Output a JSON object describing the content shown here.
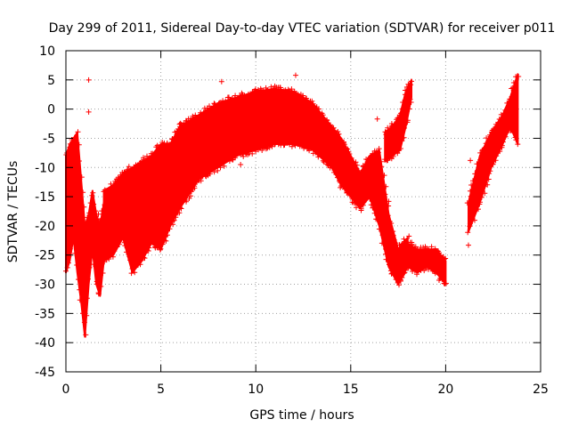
{
  "chart_data": {
    "type": "scatter",
    "title": "Day 299 of 2011, Sidereal Day-to-day VTEC variation (SDTVAR) for receiver p011",
    "xlabel": "GPS time / hours",
    "ylabel": "SDTVAR / TECUs",
    "xlim": [
      0,
      25
    ],
    "ylim": [
      -45,
      10
    ],
    "xticks": [
      "0",
      "5",
      "10",
      "15",
      "20",
      "25"
    ],
    "yticks": [
      "10",
      "5",
      "0",
      "-5",
      "-10",
      "-15",
      "-20",
      "-25",
      "-30",
      "-35",
      "-40",
      "-45"
    ],
    "grid": true,
    "marker": "+",
    "color": "#ff0000",
    "series": [
      {
        "name": "p011",
        "bands": [
          {
            "x": [
              0.0,
              0.2,
              0.4,
              0.6,
              0.8,
              1.0,
              1.2,
              1.4,
              1.6,
              1.8,
              2.0
            ],
            "low": [
              -28,
              -26,
              -22,
              -28,
              -33,
              -39,
              -30,
              -24,
              -30,
              -32,
              -26
            ],
            "high": [
              -8,
              -6,
              -5,
              -4,
              -12,
              -20,
              -18,
              -14,
              -18,
              -20,
              -16
            ]
          },
          {
            "x": [
              2.0,
              2.5,
              3.0,
              3.5,
              4.0,
              4.5,
              5.0,
              5.5,
              6.0
            ],
            "low": [
              -26,
              -25,
              -22,
              -28,
              -26,
              -23,
              -24,
              -20,
              -17
            ],
            "high": [
              -14,
              -13,
              -11,
              -10,
              -9,
              -8,
              -6,
              -6,
              -3
            ]
          },
          {
            "x": [
              6.0,
              7.0,
              8.0,
              9.0,
              10.0,
              11.0,
              12.0,
              13.0,
              14.0
            ],
            "low": [
              -17,
              -12,
              -10,
              -8,
              -7,
              -6,
              -6,
              -7,
              -10
            ],
            "high": [
              -3,
              -1,
              1,
              2,
              3,
              3.5,
              3,
              1,
              -3
            ]
          },
          {
            "x": [
              14.0,
              14.5,
              15.0,
              15.5,
              16.0,
              16.5,
              17.0,
              17.5,
              18.0
            ],
            "low": [
              -10,
              -13,
              -15,
              -17,
              -15,
              -20,
              -27,
              -30,
              -26
            ],
            "high": [
              -3,
              -5,
              -8,
              -11,
              -8,
              -7,
              -18,
              -24,
              -22
            ]
          },
          {
            "x": [
              17.5,
              18.0,
              18.5,
              19.0,
              19.5,
              20.0
            ],
            "low": [
              -30,
              -27,
              -28,
              -27,
              -28,
              -30
            ],
            "high": [
              -24,
              -23,
              -24,
              -24,
              -24,
              -26
            ]
          },
          {
            "x": [
              16.8,
              17.2,
              17.6,
              17.9,
              18.2
            ],
            "low": [
              -9,
              -8,
              -7,
              -3,
              2
            ],
            "high": [
              -4,
              -3,
              -1,
              3,
              5
            ]
          },
          {
            "x": [
              21.2,
              21.8,
              22.4,
              23.0,
              23.4,
              23.8
            ],
            "low": [
              -21,
              -16,
              -10,
              -6,
              -3,
              -6
            ],
            "high": [
              -16,
              -8,
              -4,
              -1,
              2,
              6
            ]
          }
        ],
        "outliers": [
          {
            "x": 1.2,
            "y": 5
          },
          {
            "x": 8.2,
            "y": 4.7
          },
          {
            "x": 12.1,
            "y": 5.8
          },
          {
            "x": 17.0,
            "y": -15.8
          },
          {
            "x": 21.2,
            "y": -23.3
          },
          {
            "x": 21.3,
            "y": -8.8
          },
          {
            "x": 4.8,
            "y": -23.5
          },
          {
            "x": 9.2,
            "y": -9.5
          },
          {
            "x": 1.2,
            "y": -0.5
          },
          {
            "x": 16.4,
            "y": -1.7
          }
        ]
      }
    ]
  }
}
